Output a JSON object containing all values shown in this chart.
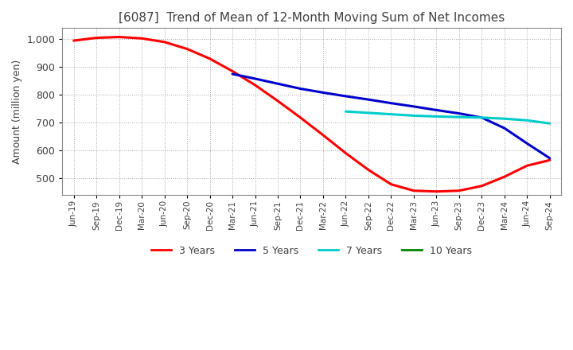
{
  "title": "[6087]  Trend of Mean of 12-Month Moving Sum of Net Incomes",
  "ylabel": "Amount (million yen)",
  "background_color": "#ffffff",
  "grid_color": "#aaaaaa",
  "title_color": "#404040",
  "label_color": "#404040",
  "ylim": [
    440,
    1040
  ],
  "yticks": [
    500,
    600,
    700,
    800,
    900,
    1000
  ],
  "x_labels": [
    "Jun-19",
    "Sep-19",
    "Dec-19",
    "Mar-20",
    "Jun-20",
    "Sep-20",
    "Dec-20",
    "Mar-21",
    "Jun-21",
    "Sep-21",
    "Dec-21",
    "Mar-22",
    "Jun-22",
    "Sep-22",
    "Dec-22",
    "Mar-23",
    "Jun-23",
    "Sep-23",
    "Dec-23",
    "Mar-24",
    "Jun-24",
    "Sep-24"
  ],
  "line_3y": [
    995,
    1005,
    1008,
    1003,
    990,
    965,
    930,
    885,
    835,
    778,
    718,
    655,
    590,
    530,
    478,
    455,
    452,
    455,
    472,
    505,
    545,
    565
  ],
  "line_5y": [
    null,
    null,
    null,
    null,
    null,
    null,
    null,
    875,
    858,
    840,
    822,
    808,
    795,
    783,
    770,
    758,
    745,
    733,
    718,
    680,
    625,
    572
  ],
  "line_7y": [
    null,
    null,
    null,
    null,
    null,
    null,
    null,
    null,
    null,
    null,
    null,
    null,
    740,
    735,
    730,
    725,
    722,
    720,
    718,
    714,
    708,
    697
  ],
  "line_10y": [
    null,
    null,
    null,
    null,
    null,
    null,
    null,
    null,
    null,
    null,
    null,
    null,
    null,
    null,
    null,
    null,
    null,
    null,
    null,
    null,
    null,
    null
  ],
  "colors": {
    "3y": "#ff0000",
    "5y": "#0000cc",
    "7y": "#00cccc",
    "10y": "#008800"
  },
  "linewidth": 2.2
}
